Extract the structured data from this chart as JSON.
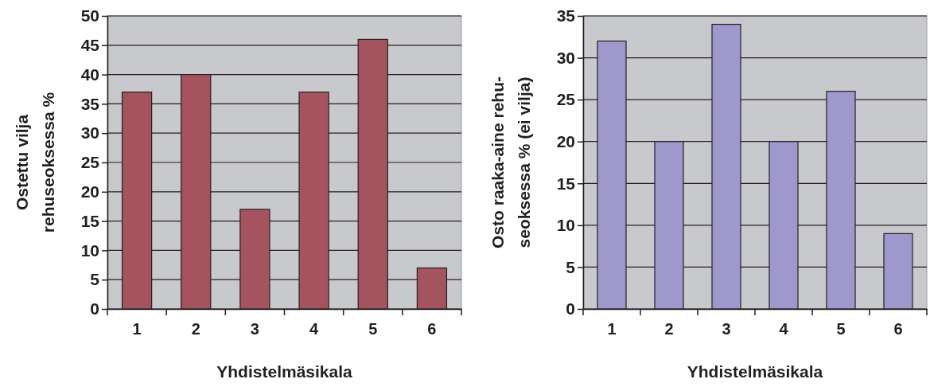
{
  "chart_data": [
    {
      "type": "bar",
      "xlabel": "Yhdistelmäsikala",
      "ylabel": "Ostettu vilja\nrehuseoksessa %",
      "categories": [
        "1",
        "2",
        "3",
        "4",
        "5",
        "6"
      ],
      "values": [
        37,
        40,
        17,
        37,
        46,
        7
      ],
      "color": "#a5545f",
      "ylim": [
        0,
        50
      ],
      "yticks": [
        0,
        5,
        10,
        15,
        20,
        25,
        30,
        35,
        40,
        45,
        50
      ],
      "grid": "y"
    },
    {
      "type": "bar",
      "xlabel": "Yhdistelmäsikala",
      "ylabel": "Osto raaka-aine rehu-\nseoksessa % (ei vilja)",
      "categories": [
        "1",
        "2",
        "3",
        "4",
        "5",
        "6"
      ],
      "values": [
        32,
        20,
        34,
        20,
        26,
        9
      ],
      "color": "#9e98cc",
      "ylim": [
        0,
        35
      ],
      "yticks": [
        0,
        5,
        10,
        15,
        20,
        25,
        30,
        35
      ],
      "grid": "y"
    }
  ]
}
